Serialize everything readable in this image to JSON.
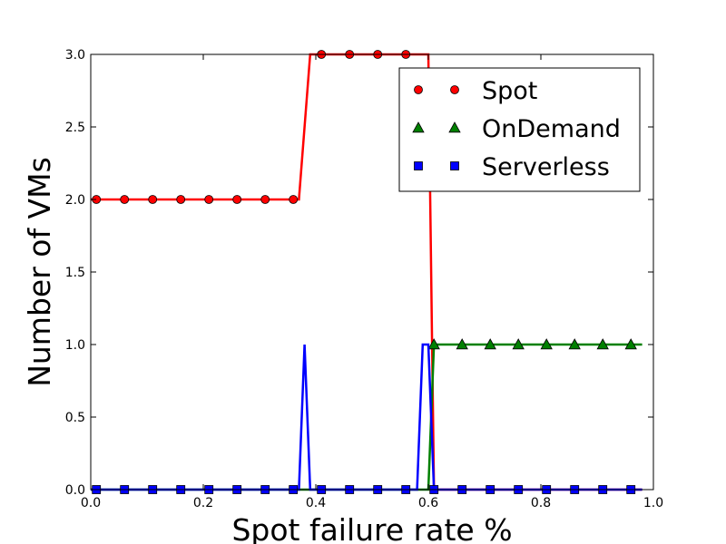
{
  "chart_data": {
    "type": "line",
    "title": "",
    "xlabel": "Spot failure rate %",
    "ylabel": "Number of VMs",
    "xlim": [
      0.0,
      1.0
    ],
    "ylim": [
      0.0,
      3.0
    ],
    "x_ticks": [
      "0.0",
      "0.2",
      "0.4",
      "0.6",
      "0.8",
      "1.0"
    ],
    "y_ticks": [
      "0.0",
      "0.5",
      "1.0",
      "1.5",
      "2.0",
      "2.5",
      "3.0"
    ],
    "grid": false,
    "legend_position": "top-right",
    "series": [
      {
        "name": "Spot",
        "color": "#ff0000",
        "marker": "circle",
        "line_x": [
          0.0,
          0.37,
          0.39,
          0.6,
          0.61,
          0.98
        ],
        "line_y": [
          2,
          2,
          3,
          3,
          0,
          0
        ],
        "marker_x": [
          0.01,
          0.06,
          0.11,
          0.16,
          0.21,
          0.26,
          0.31,
          0.36,
          0.41,
          0.46,
          0.51,
          0.56
        ],
        "marker_y": [
          2,
          2,
          2,
          2,
          2,
          2,
          2,
          2,
          3,
          3,
          3,
          3
        ]
      },
      {
        "name": "OnDemand",
        "color": "#008000",
        "marker": "triangle",
        "line_x": [
          0.0,
          0.6,
          0.61,
          0.98
        ],
        "line_y": [
          0,
          0,
          1,
          1
        ],
        "marker_x": [
          0.61,
          0.66,
          0.71,
          0.76,
          0.81,
          0.86,
          0.91,
          0.96
        ],
        "marker_y": [
          1,
          1,
          1,
          1,
          1,
          1,
          1,
          1
        ]
      },
      {
        "name": "Serverless",
        "color": "#0000ff",
        "marker": "square",
        "line_x": [
          0.0,
          0.37,
          0.38,
          0.39,
          0.58,
          0.59,
          0.6,
          0.61,
          0.98
        ],
        "line_y": [
          0,
          0,
          1,
          0,
          0,
          1,
          1,
          0,
          0
        ],
        "marker_x": [
          0.01,
          0.06,
          0.11,
          0.16,
          0.21,
          0.26,
          0.31,
          0.36,
          0.41,
          0.46,
          0.51,
          0.56,
          0.61,
          0.66,
          0.71,
          0.76,
          0.81,
          0.86,
          0.91,
          0.96
        ],
        "marker_y": [
          0,
          0,
          0,
          0,
          0,
          0,
          0,
          0,
          0,
          0,
          0,
          0,
          0,
          0,
          0,
          0,
          0,
          0,
          0,
          0
        ]
      }
    ]
  }
}
